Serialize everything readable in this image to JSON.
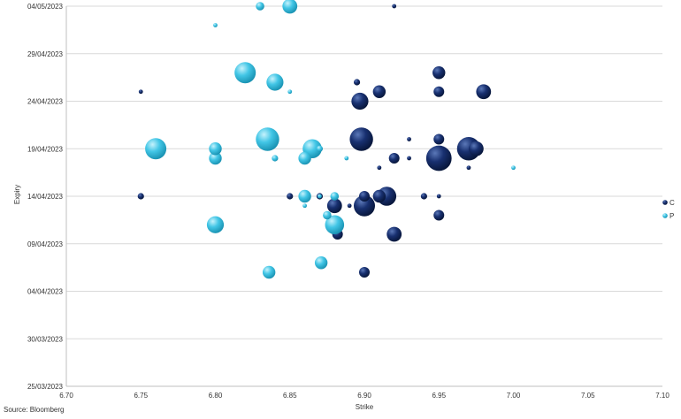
{
  "source_note": "Source: Bloomberg",
  "chart_data": {
    "type": "scatter",
    "xlabel": "Strike",
    "ylabel": "Expiry",
    "xlim": [
      6.7,
      7.1
    ],
    "ylim": [
      "25/03/2023",
      "04/05/2023"
    ],
    "x_ticks": [
      "6.70",
      "6.75",
      "6.80",
      "6.85",
      "6.90",
      "6.95",
      "7.00",
      "7.05",
      "7.10"
    ],
    "y_ticks": [
      "25/03/2023",
      "30/03/2023",
      "04/04/2023",
      "09/04/2023",
      "14/04/2023",
      "19/04/2023",
      "24/04/2023",
      "29/04/2023",
      "04/05/2023"
    ],
    "grid": "horizontal",
    "legend_position": "right",
    "series": [
      {
        "name": "C",
        "color": "#0e2150",
        "points": [
          {
            "x": 6.75,
            "y": "25/04/2023",
            "size": 1
          },
          {
            "x": 6.75,
            "y": "14/04/2023",
            "size": 2
          },
          {
            "x": 6.85,
            "y": "14/04/2023",
            "size": 2
          },
          {
            "x": 6.87,
            "y": "14/04/2023",
            "size": 2
          },
          {
            "x": 6.88,
            "y": "13/04/2023",
            "size": 6
          },
          {
            "x": 6.882,
            "y": "10/04/2023",
            "size": 4
          },
          {
            "x": 6.89,
            "y": "13/04/2023",
            "size": 1
          },
          {
            "x": 6.895,
            "y": "26/04/2023",
            "size": 2
          },
          {
            "x": 6.897,
            "y": "24/04/2023",
            "size": 7
          },
          {
            "x": 6.898,
            "y": "20/04/2023",
            "size": 10
          },
          {
            "x": 6.9,
            "y": "14/04/2023",
            "size": 4
          },
          {
            "x": 6.9,
            "y": "13/04/2023",
            "size": 9
          },
          {
            "x": 6.9,
            "y": "06/04/2023",
            "size": 4
          },
          {
            "x": 6.91,
            "y": "25/04/2023",
            "size": 5
          },
          {
            "x": 6.91,
            "y": "17/04/2023",
            "size": 1
          },
          {
            "x": 6.91,
            "y": "14/04/2023",
            "size": 5
          },
          {
            "x": 6.915,
            "y": "14/04/2023",
            "size": 8
          },
          {
            "x": 6.92,
            "y": "18/04/2023",
            "size": 4
          },
          {
            "x": 6.92,
            "y": "10/04/2023",
            "size": 6
          },
          {
            "x": 6.92,
            "y": "04/05/2023",
            "size": 1
          },
          {
            "x": 6.93,
            "y": "20/04/2023",
            "size": 1
          },
          {
            "x": 6.93,
            "y": "18/04/2023",
            "size": 1
          },
          {
            "x": 6.94,
            "y": "14/04/2023",
            "size": 2
          },
          {
            "x": 6.95,
            "y": "27/04/2023",
            "size": 5
          },
          {
            "x": 6.95,
            "y": "25/04/2023",
            "size": 4
          },
          {
            "x": 6.95,
            "y": "20/04/2023",
            "size": 4
          },
          {
            "x": 6.95,
            "y": "18/04/2023",
            "size": 11
          },
          {
            "x": 6.95,
            "y": "14/04/2023",
            "size": 1
          },
          {
            "x": 6.95,
            "y": "12/04/2023",
            "size": 4
          },
          {
            "x": 6.97,
            "y": "19/04/2023",
            "size": 10
          },
          {
            "x": 6.97,
            "y": "17/04/2023",
            "size": 1
          },
          {
            "x": 6.975,
            "y": "19/04/2023",
            "size": 6
          },
          {
            "x": 6.98,
            "y": "25/04/2023",
            "size": 6
          }
        ]
      },
      {
        "name": "P",
        "color": "#35bee0",
        "points": [
          {
            "x": 6.76,
            "y": "19/04/2023",
            "size": 9
          },
          {
            "x": 6.8,
            "y": "02/05/2023",
            "size": 1
          },
          {
            "x": 6.8,
            "y": "19/04/2023",
            "size": 5
          },
          {
            "x": 6.8,
            "y": "18/04/2023",
            "size": 5
          },
          {
            "x": 6.8,
            "y": "11/04/2023",
            "size": 7
          },
          {
            "x": 6.82,
            "y": "27/04/2023",
            "size": 9
          },
          {
            "x": 6.83,
            "y": "04/05/2023",
            "size": 3
          },
          {
            "x": 6.835,
            "y": "20/04/2023",
            "size": 10
          },
          {
            "x": 6.836,
            "y": "06/04/2023",
            "size": 5
          },
          {
            "x": 6.84,
            "y": "26/04/2023",
            "size": 7
          },
          {
            "x": 6.84,
            "y": "18/04/2023",
            "size": 2
          },
          {
            "x": 6.85,
            "y": "04/05/2023",
            "size": 6
          },
          {
            "x": 6.85,
            "y": "25/04/2023",
            "size": 1
          },
          {
            "x": 6.86,
            "y": "18/04/2023",
            "size": 5
          },
          {
            "x": 6.86,
            "y": "14/04/2023",
            "size": 5
          },
          {
            "x": 6.86,
            "y": "13/04/2023",
            "size": 1
          },
          {
            "x": 6.865,
            "y": "19/04/2023",
            "size": 8
          },
          {
            "x": 6.87,
            "y": "19/04/2023",
            "size": 2
          },
          {
            "x": 6.87,
            "y": "14/04/2023",
            "size": 1
          },
          {
            "x": 6.871,
            "y": "07/04/2023",
            "size": 5
          },
          {
            "x": 6.875,
            "y": "12/04/2023",
            "size": 3
          },
          {
            "x": 6.88,
            "y": "14/04/2023",
            "size": 3
          },
          {
            "x": 6.88,
            "y": "11/04/2023",
            "size": 8
          },
          {
            "x": 6.888,
            "y": "18/04/2023",
            "size": 1
          },
          {
            "x": 7.0,
            "y": "17/04/2023",
            "size": 1
          }
        ]
      }
    ]
  }
}
